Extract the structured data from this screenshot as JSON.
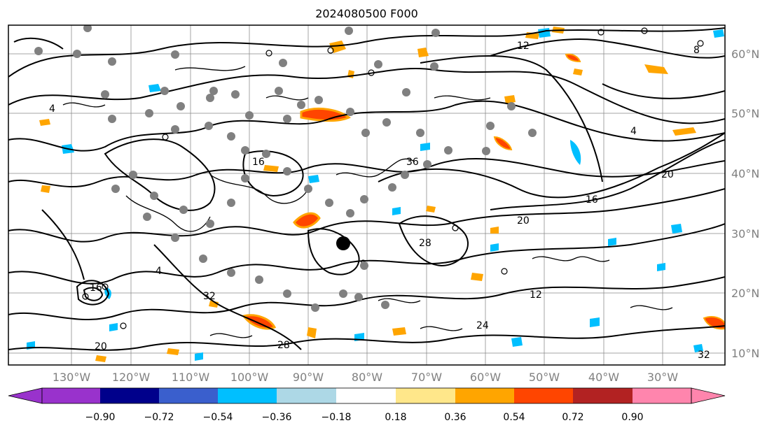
{
  "title": "2024080500 F000",
  "map": {
    "lat_labels": [
      "60°N",
      "50°N",
      "40°N",
      "30°N",
      "20°N",
      "10°N"
    ],
    "lon_labels": [
      "130°W",
      "120°W",
      "110°W",
      "100°W",
      "90°W",
      "80°W",
      "70°W",
      "60°W",
      "50°W",
      "40°W",
      "30°W"
    ],
    "contour_labels": [
      "12",
      "4",
      "16",
      "20",
      "24",
      "28",
      "32",
      "8",
      "36"
    ],
    "gridline_color": "#808080",
    "contour_color": "#000000",
    "marker_color": "#808080"
  },
  "colorbar": {
    "tick_labels": [
      "−0.90",
      "−0.72",
      "−0.54",
      "−0.36",
      "−0.18",
      "0.18",
      "0.36",
      "0.54",
      "0.72",
      "0.90"
    ],
    "under_color": "#9932cc",
    "over_color": "#ff85ad",
    "colors": [
      "#9932cc",
      "#00008b",
      "#3a5fcd",
      "#00bfff",
      "#add8e6",
      "#ffffff",
      "#ffe78a",
      "#ffa500",
      "#ff4500",
      "#b22222",
      "#ff85ad"
    ]
  }
}
